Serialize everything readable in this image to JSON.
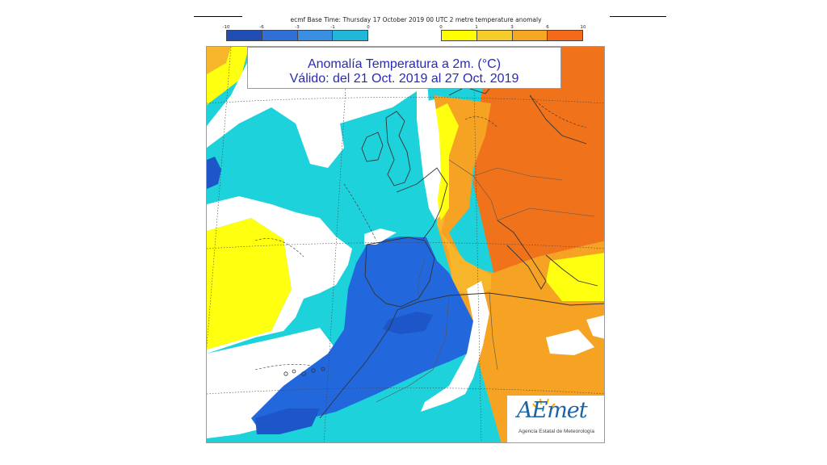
{
  "header": {
    "caption": "ecmf Base Time: Thursday 17 October 2019 00 UTC 2 metre temperature anomaly"
  },
  "legend": {
    "cold_ticks": [
      "-10",
      "-6",
      "-3",
      "-1",
      "0"
    ],
    "warm_ticks": [
      "0",
      "1",
      "3",
      "6",
      "10"
    ],
    "cold_colors": [
      "#1f4db3",
      "#2f6fd6",
      "#3a8fe3",
      "#20b7d8"
    ],
    "warm_colors": [
      "#ffff00",
      "#f5cc2a",
      "#f5a623",
      "#f26a1a"
    ]
  },
  "title": {
    "line1": "Anomalía Temperatura a 2m. (°C)",
    "line2": "Válido: del 21 Oct. 2019 al 27 Oct. 2019"
  },
  "logo": {
    "word": "AEmet",
    "subtitle": "Agencia Estatal de Meteorología"
  },
  "map_colors": {
    "cyan": "#1ed2dc",
    "blue": "#2367dc",
    "deep_blue": "#1c56c8",
    "yellow": "#ffff10",
    "light_orange": "#f7b52c",
    "orange": "#f6a223",
    "dark_orange": "#f0731c",
    "white": "#ffffff"
  }
}
